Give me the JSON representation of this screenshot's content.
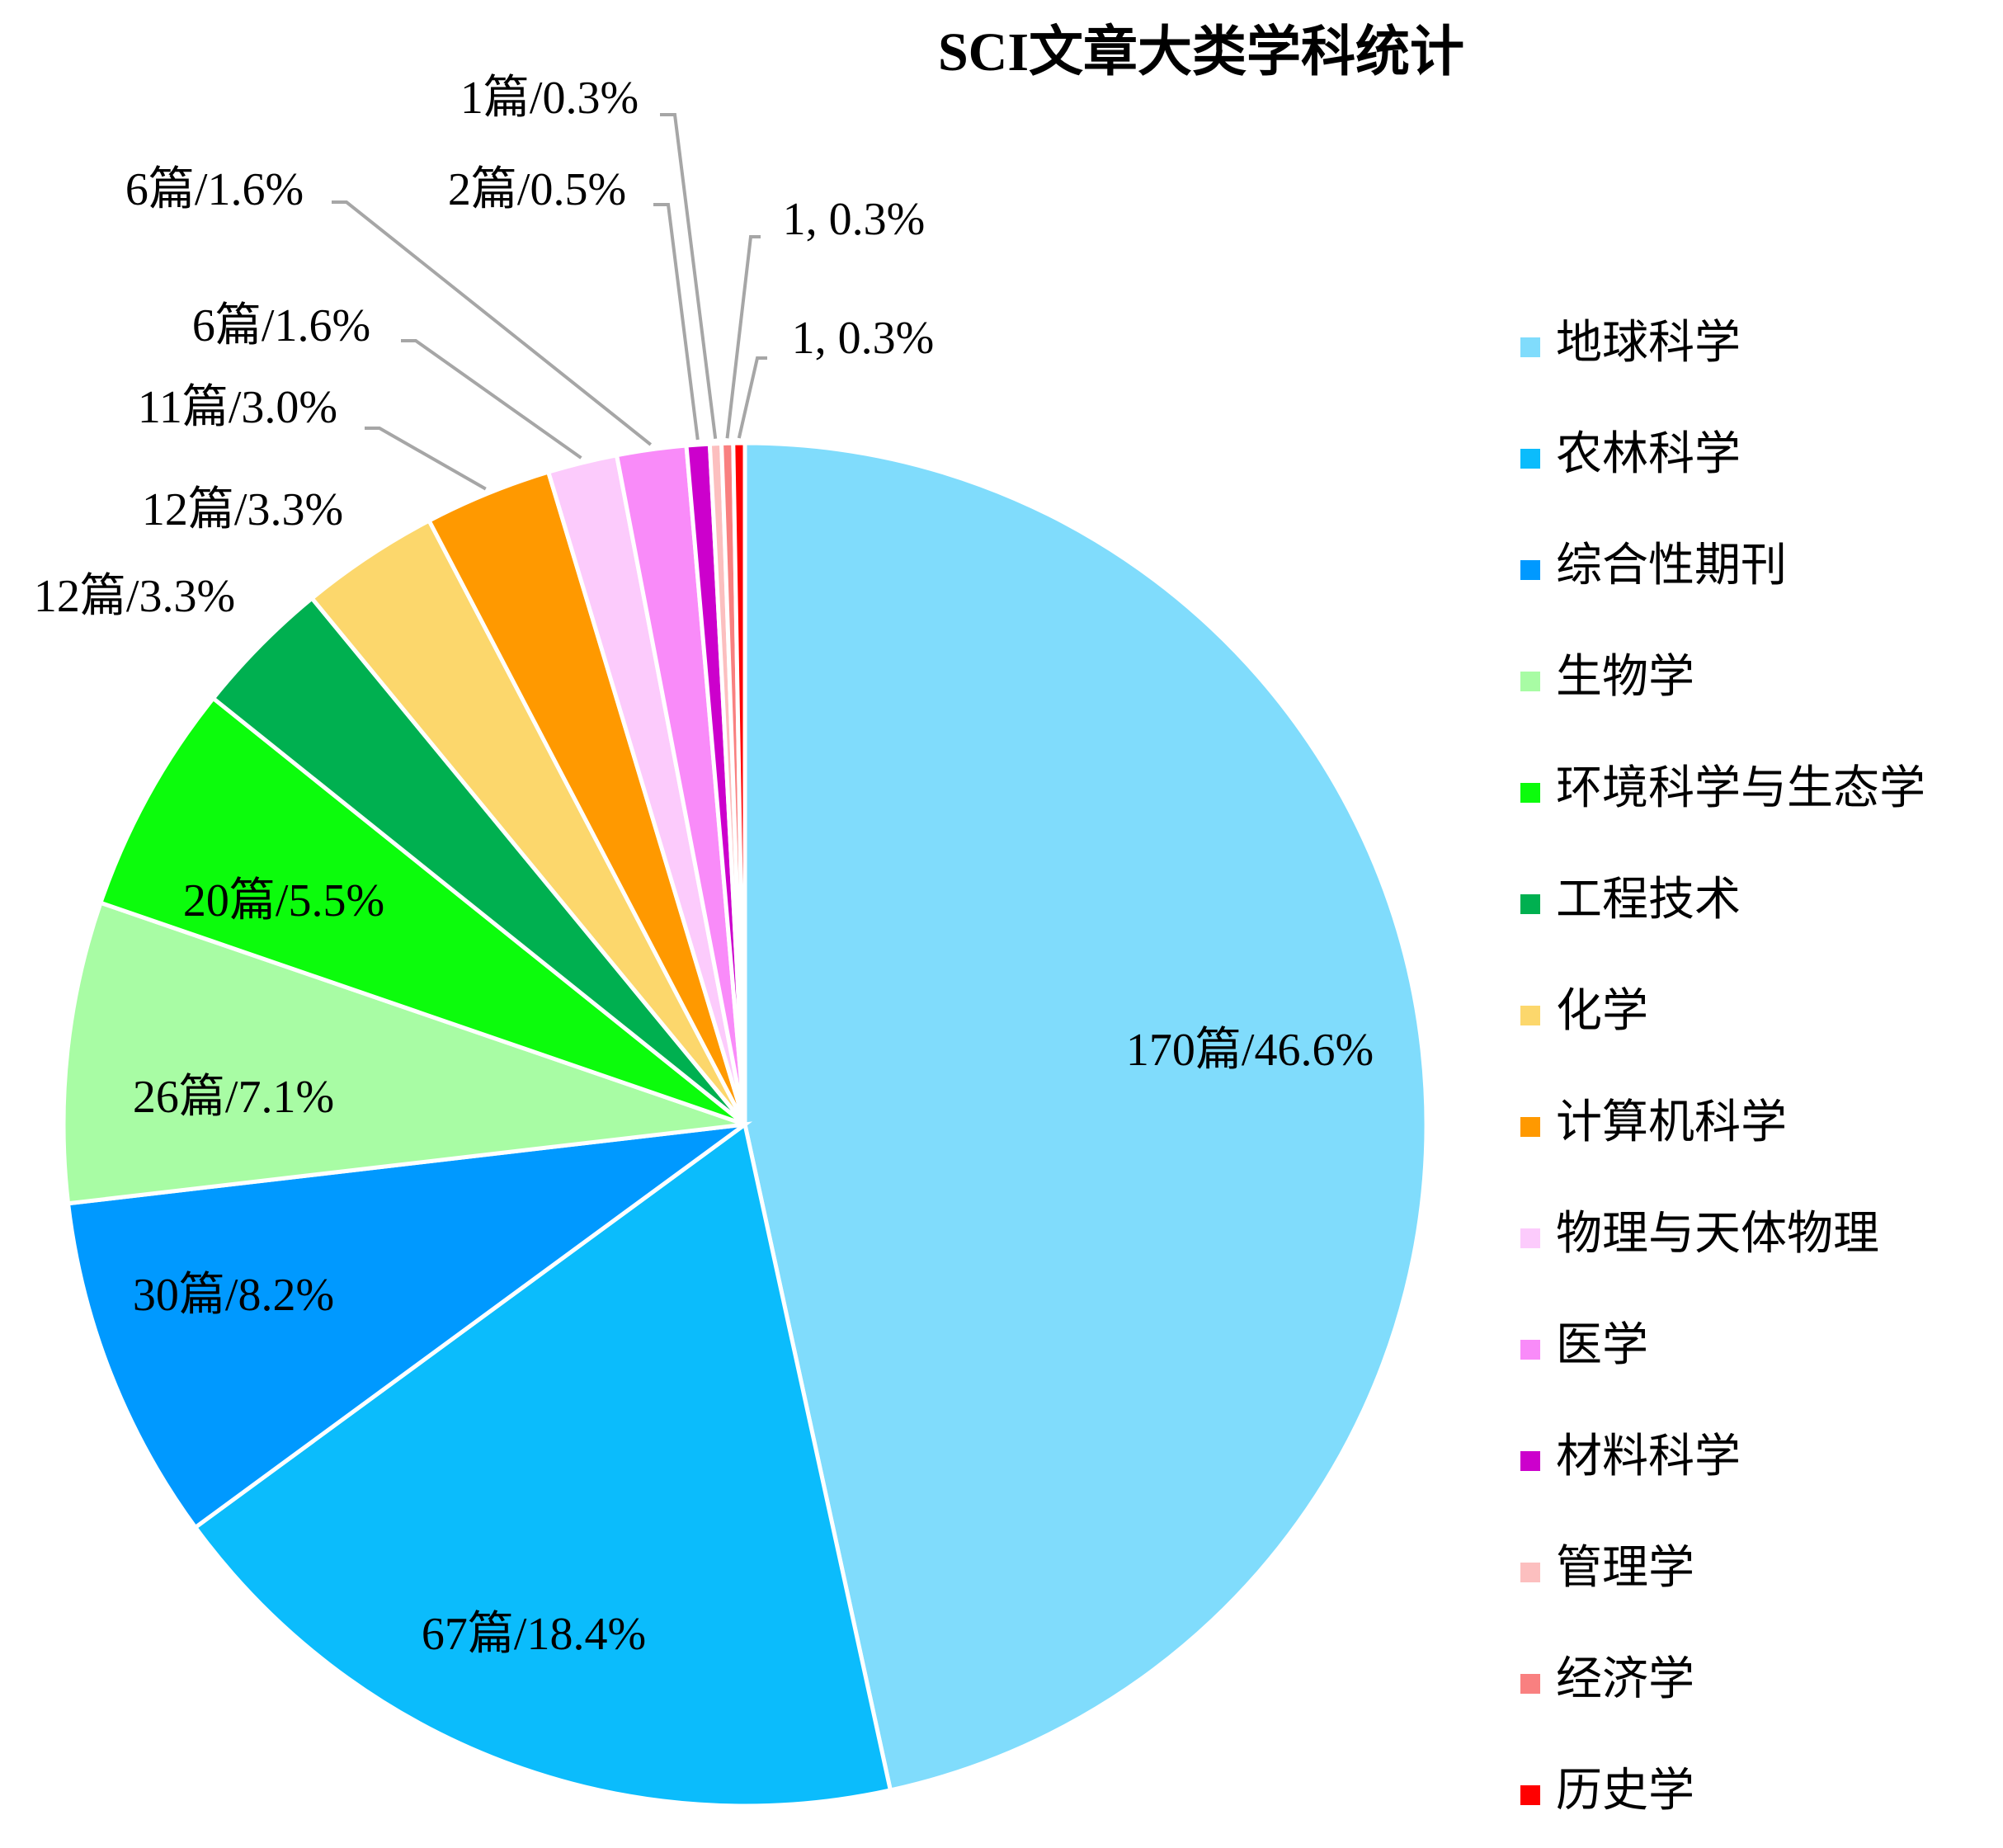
{
  "chart_data": {
    "type": "pie",
    "title": "SCI文章大类学科统计",
    "categories": [
      "地球科学",
      "农林科学",
      "综合性期刊",
      "生物学",
      "环境科学与生态学",
      "工程技术",
      "化学",
      "计算机科学",
      "物理与天体物理",
      "医学",
      "材料科学",
      "管理学",
      "经济学",
      "历史学"
    ],
    "values": [
      170,
      67,
      30,
      26,
      20,
      12,
      12,
      11,
      6,
      6,
      2,
      1,
      1,
      1
    ],
    "value_labels": [
      "170篇/46.6%",
      "67篇/18.4%",
      "30篇/8.2%",
      "26篇/7.1%",
      "20篇/5.5%",
      "12篇/3.3%",
      "12篇/3.3%",
      "11篇/3.0%",
      "6篇/1.6%",
      "6篇/1.6%",
      "2篇/0.5%",
      "1篇/0.3%",
      "1, 0.3%",
      "1, 0.3%"
    ],
    "colors": [
      "#80dcfc",
      "#0bbcfc",
      "#0099ff",
      "#a8fca4",
      "#0cfc0c",
      "#00b050",
      "#fcd76c",
      "#ff9900",
      "#fccbfc",
      "#f98bf9",
      "#cc00cc",
      "#fcbfbf",
      "#f98080",
      "#ff0000"
    ],
    "legend": "right"
  }
}
